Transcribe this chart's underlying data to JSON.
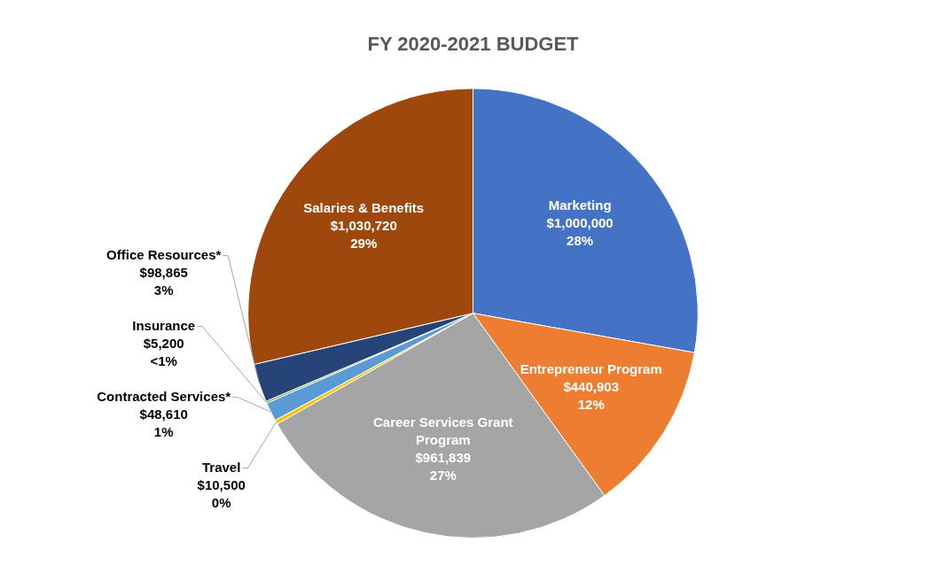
{
  "chart_data": {
    "type": "pie",
    "title": "FY 2020-2021 BUDGET",
    "categories": [
      "Marketing",
      "Entrepreneur Program",
      "Career Services Grant Program",
      "Travel",
      "Contracted Services*",
      "Insurance",
      "Office Resources*",
      "Salaries & Benefits"
    ],
    "values": [
      1000000,
      440903,
      961839,
      10500,
      48610,
      5200,
      98865,
      1030720
    ],
    "colors": [
      "#4472c4",
      "#ed7d31",
      "#a5a5a5",
      "#ffc000",
      "#5b9bd5",
      "#70ad47",
      "#264478",
      "#9e480e"
    ],
    "value_labels": [
      "$1,000,000\n28%",
      "$440,903\n12%",
      "$961,839\n27%",
      "$10,500\n0%",
      "$48,610\n1%",
      "$5,200\n<1%",
      "$98,865\n3%",
      "$1,030,720\n29%"
    ],
    "legend": false
  }
}
